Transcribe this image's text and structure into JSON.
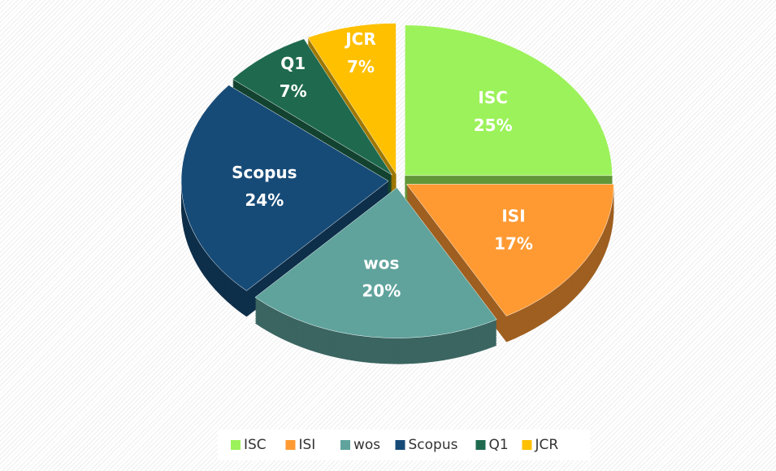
{
  "chart_data": {
    "type": "pie",
    "categories": [
      "ISC",
      "ISI",
      "wos",
      "Scopus",
      "Q1",
      "JCR"
    ],
    "values": [
      25,
      17,
      20,
      24,
      7,
      7
    ],
    "value_labels": [
      "25%",
      "17%",
      "20%",
      "24%",
      "7%",
      "7%"
    ],
    "colors": [
      "#9cf25a",
      "#ff9a33",
      "#5fa39c",
      "#174b77",
      "#1f6a4f",
      "#ffc000"
    ],
    "legend": "bottom"
  }
}
